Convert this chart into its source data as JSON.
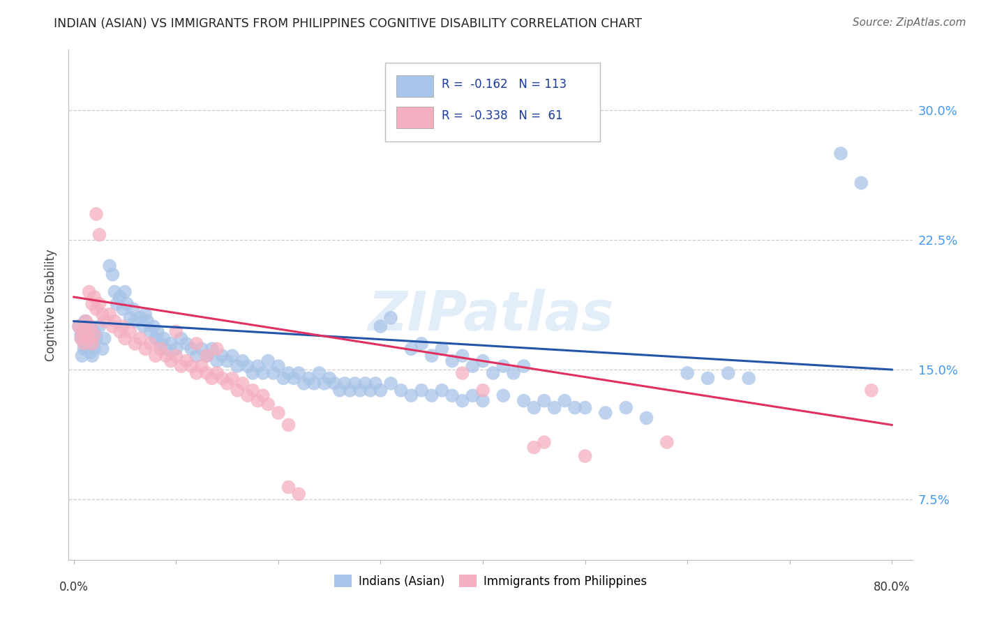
{
  "title": "INDIAN (ASIAN) VS IMMIGRANTS FROM PHILIPPINES COGNITIVE DISABILITY CORRELATION CHART",
  "source": "Source: ZipAtlas.com",
  "ylabel": "Cognitive Disability",
  "ytick_labels": [
    "7.5%",
    "15.0%",
    "22.5%",
    "30.0%"
  ],
  "ytick_values": [
    0.075,
    0.15,
    0.225,
    0.3
  ],
  "xlim": [
    -0.005,
    0.82
  ],
  "ylim": [
    0.04,
    0.335
  ],
  "legend_bottom": [
    "Indians (Asian)",
    "Immigrants from Philippines"
  ],
  "blue_color": "#a8c4e8",
  "pink_color": "#f4afc0",
  "blue_line_color": "#2255aa",
  "pink_line_color": "#e03060",
  "watermark": "ZIPatlas",
  "blue_scatter": [
    [
      0.005,
      0.175
    ],
    [
      0.007,
      0.17
    ],
    [
      0.008,
      0.168
    ],
    [
      0.009,
      0.172
    ],
    [
      0.01,
      0.165
    ],
    [
      0.011,
      0.178
    ],
    [
      0.012,
      0.162
    ],
    [
      0.013,
      0.17
    ],
    [
      0.014,
      0.168
    ],
    [
      0.015,
      0.175
    ],
    [
      0.016,
      0.16
    ],
    [
      0.017,
      0.172
    ],
    [
      0.018,
      0.165
    ],
    [
      0.019,
      0.168
    ],
    [
      0.02,
      0.162
    ],
    [
      0.008,
      0.158
    ],
    [
      0.01,
      0.162
    ],
    [
      0.012,
      0.17
    ],
    [
      0.015,
      0.165
    ],
    [
      0.018,
      0.158
    ],
    [
      0.02,
      0.172
    ],
    [
      0.022,
      0.168
    ],
    [
      0.025,
      0.175
    ],
    [
      0.028,
      0.162
    ],
    [
      0.03,
      0.168
    ],
    [
      0.035,
      0.21
    ],
    [
      0.038,
      0.205
    ],
    [
      0.04,
      0.195
    ],
    [
      0.042,
      0.188
    ],
    [
      0.045,
      0.192
    ],
    [
      0.048,
      0.185
    ],
    [
      0.05,
      0.195
    ],
    [
      0.052,
      0.188
    ],
    [
      0.055,
      0.18
    ],
    [
      0.058,
      0.185
    ],
    [
      0.06,
      0.178
    ],
    [
      0.065,
      0.18
    ],
    [
      0.068,
      0.175
    ],
    [
      0.07,
      0.182
    ],
    [
      0.072,
      0.178
    ],
    [
      0.075,
      0.172
    ],
    [
      0.078,
      0.175
    ],
    [
      0.08,
      0.168
    ],
    [
      0.082,
      0.172
    ],
    [
      0.085,
      0.165
    ],
    [
      0.088,
      0.168
    ],
    [
      0.09,
      0.162
    ],
    [
      0.095,
      0.165
    ],
    [
      0.1,
      0.162
    ],
    [
      0.105,
      0.168
    ],
    [
      0.11,
      0.165
    ],
    [
      0.115,
      0.162
    ],
    [
      0.12,
      0.158
    ],
    [
      0.125,
      0.162
    ],
    [
      0.13,
      0.158
    ],
    [
      0.135,
      0.162
    ],
    [
      0.14,
      0.155
    ],
    [
      0.145,
      0.158
    ],
    [
      0.15,
      0.155
    ],
    [
      0.155,
      0.158
    ],
    [
      0.16,
      0.152
    ],
    [
      0.165,
      0.155
    ],
    [
      0.17,
      0.152
    ],
    [
      0.175,
      0.148
    ],
    [
      0.18,
      0.152
    ],
    [
      0.185,
      0.148
    ],
    [
      0.19,
      0.155
    ],
    [
      0.195,
      0.148
    ],
    [
      0.2,
      0.152
    ],
    [
      0.205,
      0.145
    ],
    [
      0.21,
      0.148
    ],
    [
      0.215,
      0.145
    ],
    [
      0.22,
      0.148
    ],
    [
      0.225,
      0.142
    ],
    [
      0.23,
      0.145
    ],
    [
      0.235,
      0.142
    ],
    [
      0.24,
      0.148
    ],
    [
      0.245,
      0.142
    ],
    [
      0.25,
      0.145
    ],
    [
      0.255,
      0.142
    ],
    [
      0.26,
      0.138
    ],
    [
      0.265,
      0.142
    ],
    [
      0.27,
      0.138
    ],
    [
      0.275,
      0.142
    ],
    [
      0.28,
      0.138
    ],
    [
      0.285,
      0.142
    ],
    [
      0.29,
      0.138
    ],
    [
      0.295,
      0.142
    ],
    [
      0.3,
      0.138
    ],
    [
      0.31,
      0.142
    ],
    [
      0.32,
      0.138
    ],
    [
      0.33,
      0.135
    ],
    [
      0.34,
      0.138
    ],
    [
      0.35,
      0.135
    ],
    [
      0.36,
      0.138
    ],
    [
      0.37,
      0.135
    ],
    [
      0.38,
      0.132
    ],
    [
      0.39,
      0.135
    ],
    [
      0.4,
      0.132
    ],
    [
      0.42,
      0.135
    ],
    [
      0.44,
      0.132
    ],
    [
      0.45,
      0.128
    ],
    [
      0.46,
      0.132
    ],
    [
      0.47,
      0.128
    ],
    [
      0.48,
      0.132
    ],
    [
      0.49,
      0.128
    ],
    [
      0.3,
      0.175
    ],
    [
      0.31,
      0.18
    ],
    [
      0.33,
      0.162
    ],
    [
      0.34,
      0.165
    ],
    [
      0.35,
      0.158
    ],
    [
      0.36,
      0.162
    ],
    [
      0.37,
      0.155
    ],
    [
      0.38,
      0.158
    ],
    [
      0.39,
      0.152
    ],
    [
      0.4,
      0.155
    ],
    [
      0.41,
      0.148
    ],
    [
      0.42,
      0.152
    ],
    [
      0.43,
      0.148
    ],
    [
      0.44,
      0.152
    ],
    [
      0.5,
      0.128
    ],
    [
      0.52,
      0.125
    ],
    [
      0.54,
      0.128
    ],
    [
      0.56,
      0.122
    ],
    [
      0.6,
      0.148
    ],
    [
      0.62,
      0.145
    ],
    [
      0.64,
      0.148
    ],
    [
      0.66,
      0.145
    ],
    [
      0.75,
      0.275
    ],
    [
      0.77,
      0.258
    ]
  ],
  "pink_scatter": [
    [
      0.005,
      0.175
    ],
    [
      0.007,
      0.168
    ],
    [
      0.008,
      0.172
    ],
    [
      0.01,
      0.165
    ],
    [
      0.012,
      0.178
    ],
    [
      0.013,
      0.172
    ],
    [
      0.015,
      0.168
    ],
    [
      0.017,
      0.175
    ],
    [
      0.018,
      0.165
    ],
    [
      0.02,
      0.17
    ],
    [
      0.015,
      0.195
    ],
    [
      0.018,
      0.188
    ],
    [
      0.02,
      0.192
    ],
    [
      0.022,
      0.185
    ],
    [
      0.025,
      0.188
    ],
    [
      0.028,
      0.182
    ],
    [
      0.022,
      0.24
    ],
    [
      0.025,
      0.228
    ],
    [
      0.03,
      0.178
    ],
    [
      0.035,
      0.182
    ],
    [
      0.038,
      0.175
    ],
    [
      0.04,
      0.178
    ],
    [
      0.045,
      0.172
    ],
    [
      0.048,
      0.175
    ],
    [
      0.05,
      0.168
    ],
    [
      0.055,
      0.172
    ],
    [
      0.06,
      0.165
    ],
    [
      0.065,
      0.168
    ],
    [
      0.07,
      0.162
    ],
    [
      0.075,
      0.165
    ],
    [
      0.08,
      0.158
    ],
    [
      0.085,
      0.162
    ],
    [
      0.09,
      0.158
    ],
    [
      0.095,
      0.155
    ],
    [
      0.1,
      0.158
    ],
    [
      0.105,
      0.152
    ],
    [
      0.11,
      0.155
    ],
    [
      0.115,
      0.152
    ],
    [
      0.12,
      0.148
    ],
    [
      0.125,
      0.152
    ],
    [
      0.13,
      0.148
    ],
    [
      0.135,
      0.145
    ],
    [
      0.14,
      0.148
    ],
    [
      0.145,
      0.145
    ],
    [
      0.15,
      0.142
    ],
    [
      0.155,
      0.145
    ],
    [
      0.16,
      0.138
    ],
    [
      0.165,
      0.142
    ],
    [
      0.17,
      0.135
    ],
    [
      0.175,
      0.138
    ],
    [
      0.18,
      0.132
    ],
    [
      0.185,
      0.135
    ],
    [
      0.19,
      0.13
    ],
    [
      0.2,
      0.125
    ],
    [
      0.21,
      0.118
    ],
    [
      0.1,
      0.172
    ],
    [
      0.12,
      0.165
    ],
    [
      0.13,
      0.158
    ],
    [
      0.14,
      0.162
    ],
    [
      0.21,
      0.082
    ],
    [
      0.22,
      0.078
    ],
    [
      0.38,
      0.148
    ],
    [
      0.4,
      0.138
    ],
    [
      0.45,
      0.105
    ],
    [
      0.46,
      0.108
    ],
    [
      0.5,
      0.1
    ],
    [
      0.58,
      0.108
    ],
    [
      0.78,
      0.138
    ]
  ],
  "blue_regression": {
    "x_start": 0.0,
    "x_end": 0.8,
    "y_start": 0.178,
    "y_end": 0.15
  },
  "pink_regression": {
    "x_start": 0.0,
    "x_end": 0.8,
    "y_start": 0.192,
    "y_end": 0.118
  }
}
